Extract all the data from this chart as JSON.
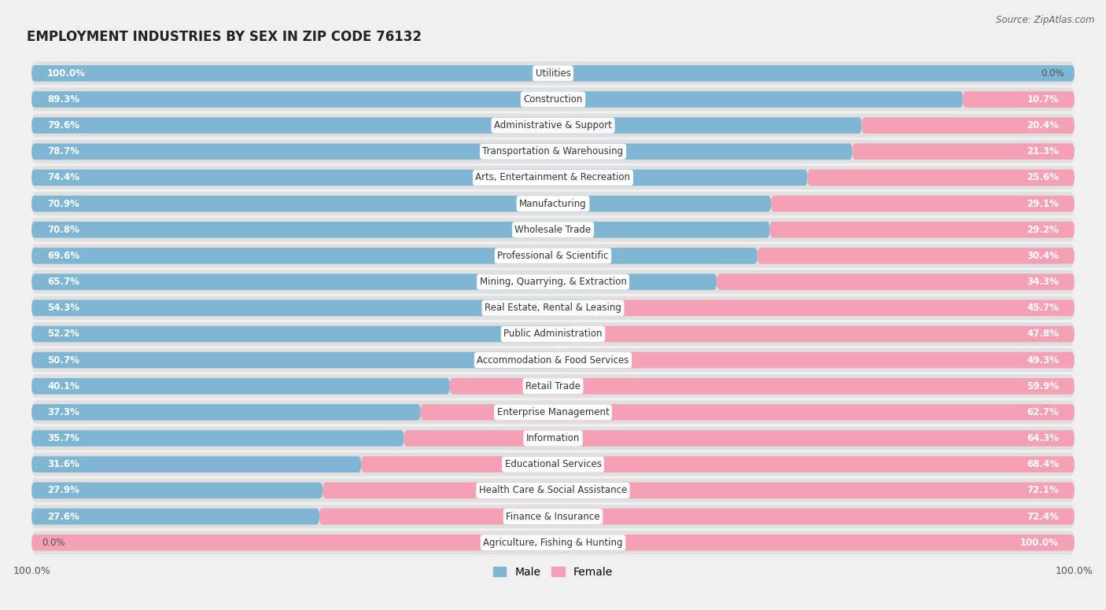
{
  "title": "EMPLOYMENT INDUSTRIES BY SEX IN ZIP CODE 76132",
  "source": "Source: ZipAtlas.com",
  "categories": [
    "Utilities",
    "Construction",
    "Administrative & Support",
    "Transportation & Warehousing",
    "Arts, Entertainment & Recreation",
    "Manufacturing",
    "Wholesale Trade",
    "Professional & Scientific",
    "Mining, Quarrying, & Extraction",
    "Real Estate, Rental & Leasing",
    "Public Administration",
    "Accommodation & Food Services",
    "Retail Trade",
    "Enterprise Management",
    "Information",
    "Educational Services",
    "Health Care & Social Assistance",
    "Finance & Insurance",
    "Agriculture, Fishing & Hunting"
  ],
  "male": [
    100.0,
    89.3,
    79.6,
    78.7,
    74.4,
    70.9,
    70.8,
    69.6,
    65.7,
    54.3,
    52.2,
    50.7,
    40.1,
    37.3,
    35.7,
    31.6,
    27.9,
    27.6,
    0.0
  ],
  "female": [
    0.0,
    10.7,
    20.4,
    21.3,
    25.6,
    29.1,
    29.2,
    30.4,
    34.3,
    45.7,
    47.8,
    49.3,
    59.9,
    62.7,
    64.3,
    68.4,
    72.1,
    72.4,
    100.0
  ],
  "male_color": "#7eb6d4",
  "female_color": "#f4a0b5",
  "background_color": "#f0f0f0",
  "row_bg_color": "#e0e0e0",
  "label_bg_color": "#ffffff",
  "title_fontsize": 12,
  "pct_fontsize": 8.5,
  "cat_fontsize": 8.5,
  "tick_fontsize": 9,
  "legend_fontsize": 10,
  "bar_height": 0.62,
  "figsize": [
    14.06,
    7.76
  ]
}
